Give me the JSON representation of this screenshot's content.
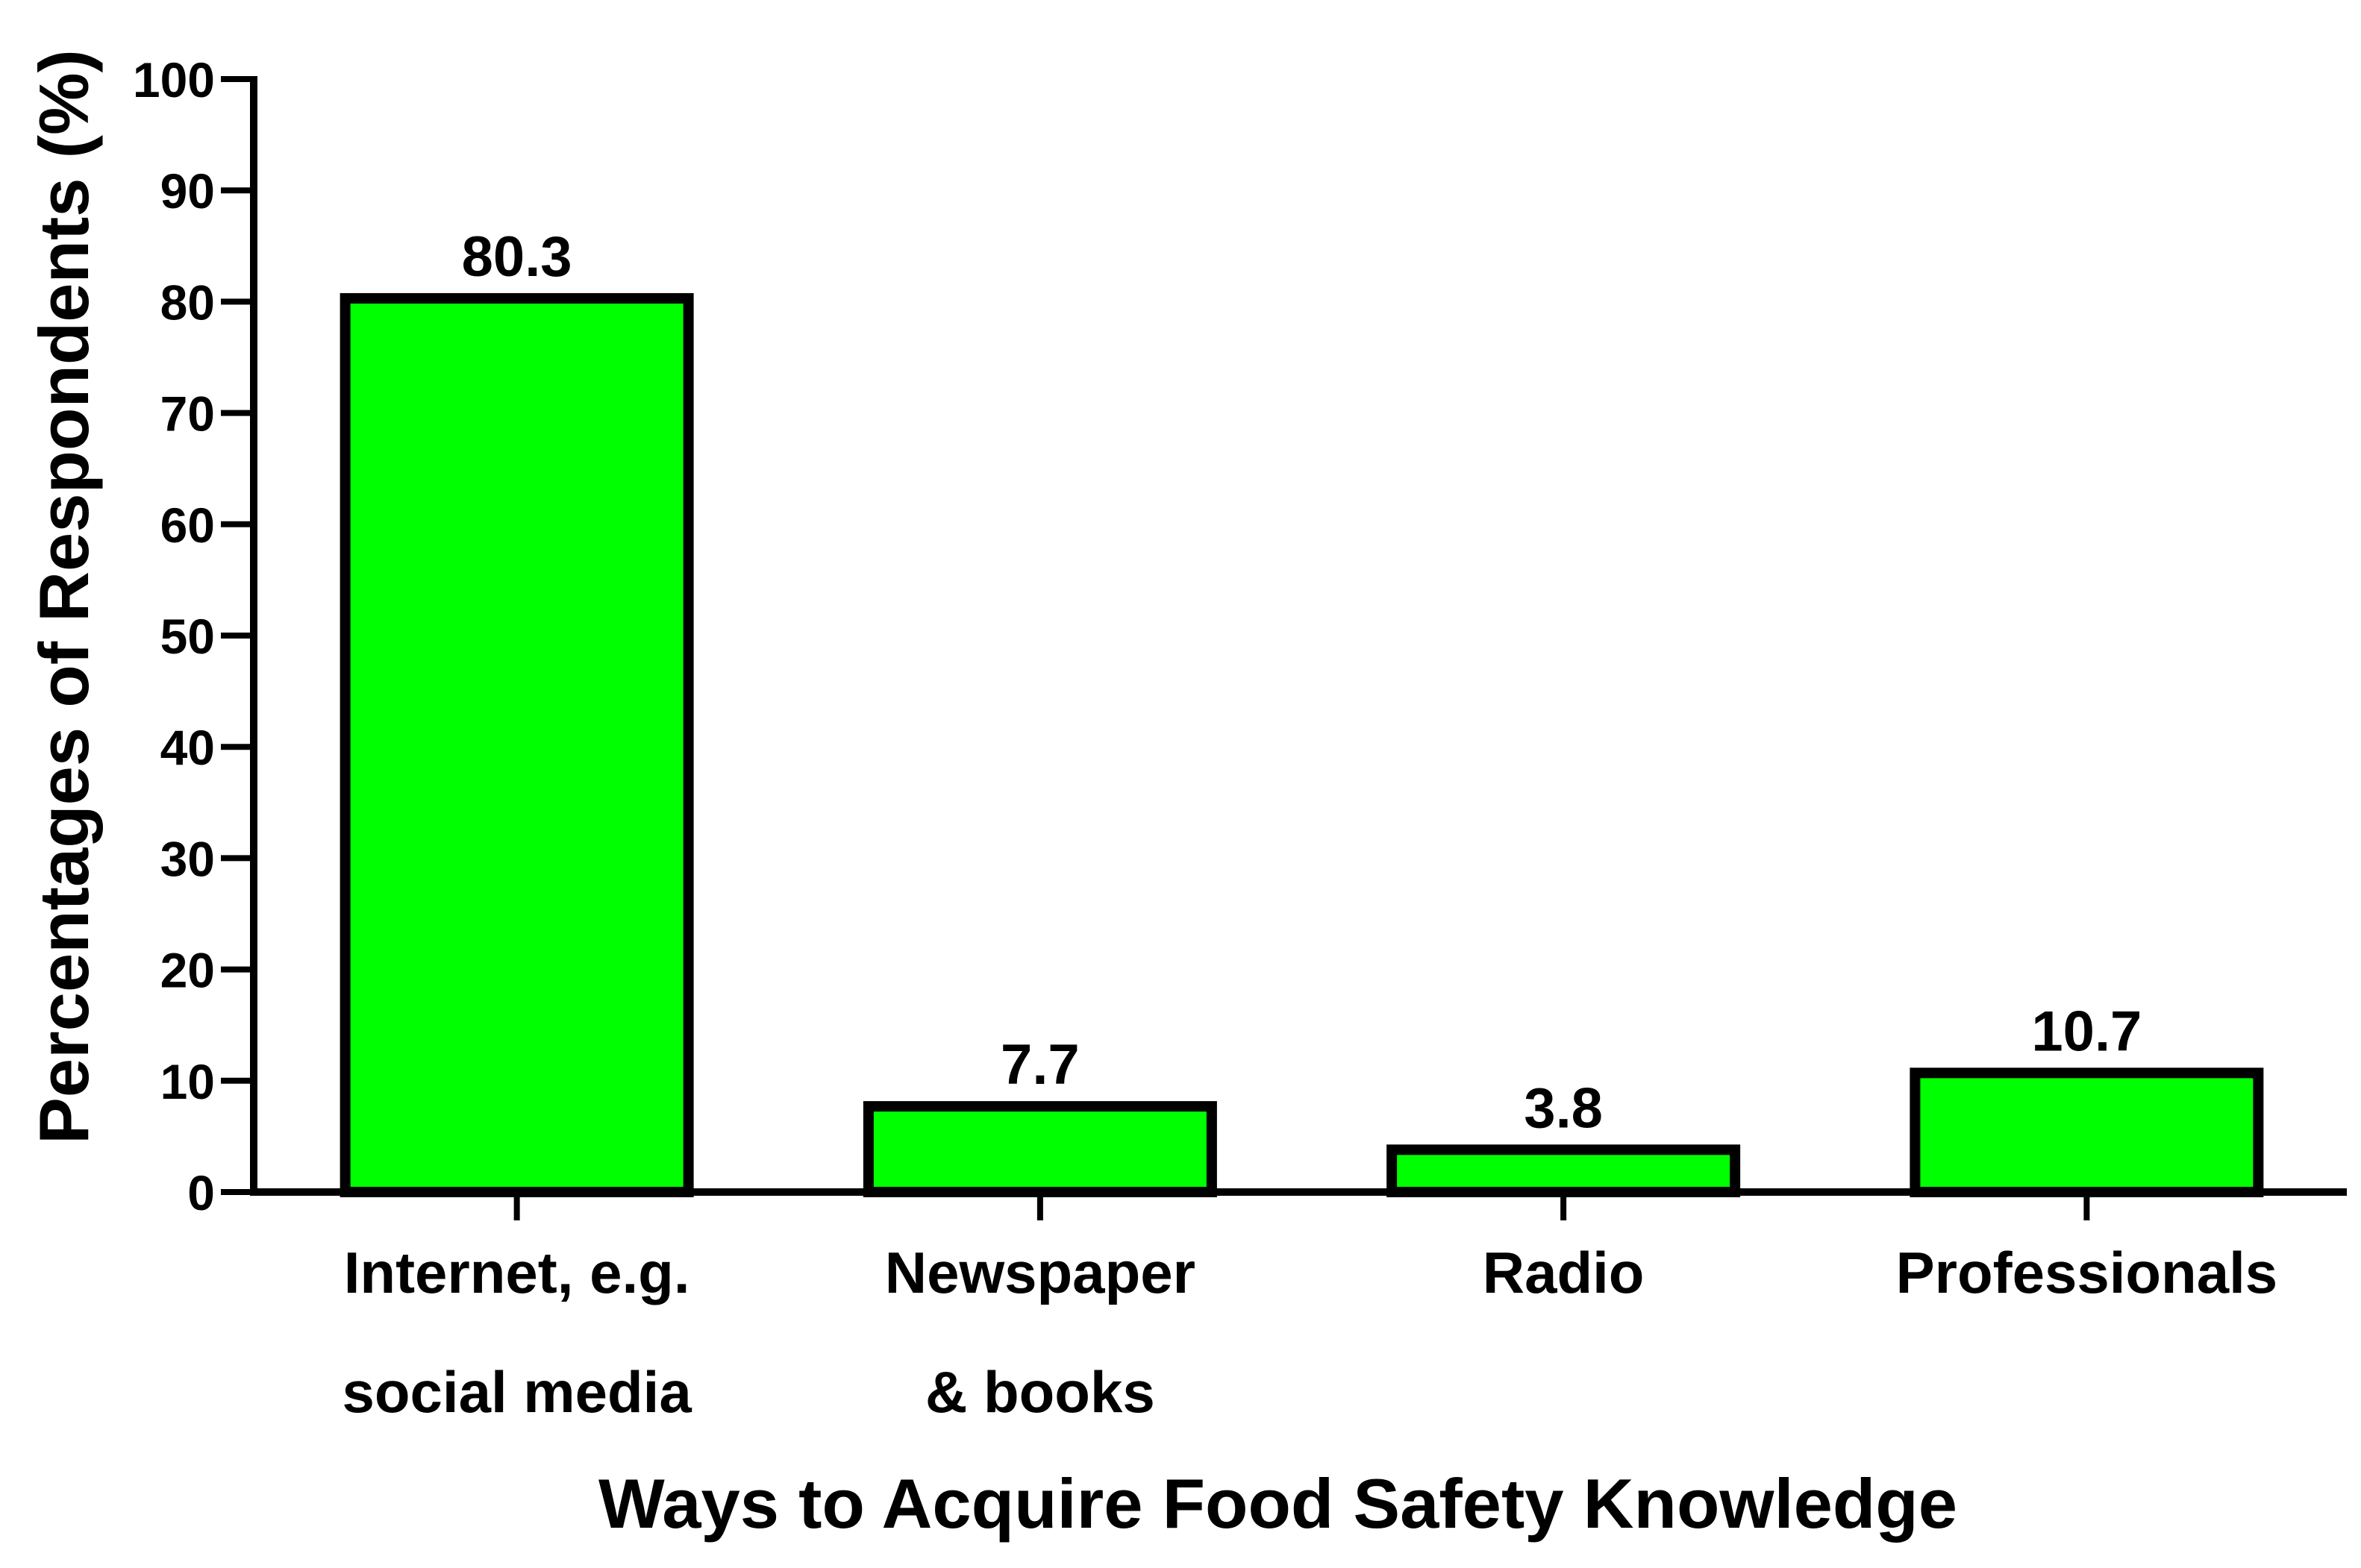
{
  "chart_data": {
    "type": "bar",
    "title": "",
    "xlabel": "Ways to Acquire Food Safety Knowledge",
    "ylabel": "Percentages of Respondents (%)",
    "ylim": [
      0,
      100
    ],
    "yticks": [
      0,
      10,
      20,
      30,
      40,
      50,
      60,
      70,
      80,
      90,
      100
    ],
    "categories": [
      [
        "Internet, e.g.",
        "social media"
      ],
      [
        "Newspaper",
        "& books"
      ],
      [
        "Radio"
      ],
      [
        "Professionals"
      ]
    ],
    "values": [
      80.3,
      7.7,
      3.8,
      10.7
    ],
    "data_labels": [
      "80.3",
      "7.7",
      "3.8",
      "10.7"
    ],
    "bar_color": "#00ff00",
    "bar_edge_color": "#000000",
    "grid": false,
    "legend": "none"
  }
}
